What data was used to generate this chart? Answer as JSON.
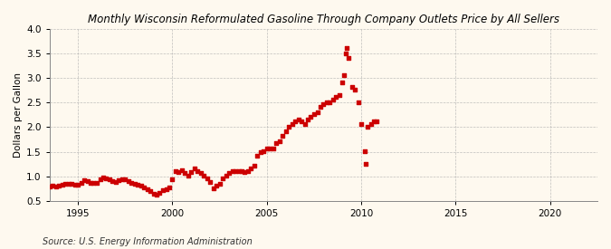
{
  "title": "Monthly Wisconsin Reformulated Gasoline Through Company Outlets Price by All Sellers",
  "ylabel": "Dollars per Gallon",
  "source": "Source: U.S. Energy Information Administration",
  "xlim": [
    1993.5,
    2022.5
  ],
  "ylim": [
    0.5,
    4.0
  ],
  "yticks": [
    0.5,
    1.0,
    1.5,
    2.0,
    2.5,
    3.0,
    3.5,
    4.0
  ],
  "xticks": [
    1995,
    2000,
    2005,
    2010,
    2015,
    2020
  ],
  "background_color": "#fef9ef",
  "marker_color": "#cc0000",
  "grid_color": "#b0b0b0",
  "data": [
    [
      1993.5,
      0.79
    ],
    [
      1993.67,
      0.8
    ],
    [
      1993.83,
      0.79
    ],
    [
      1994.0,
      0.8
    ],
    [
      1994.17,
      0.82
    ],
    [
      1994.33,
      0.84
    ],
    [
      1994.5,
      0.85
    ],
    [
      1994.67,
      0.84
    ],
    [
      1994.83,
      0.82
    ],
    [
      1995.0,
      0.83
    ],
    [
      1995.17,
      0.87
    ],
    [
      1995.33,
      0.91
    ],
    [
      1995.5,
      0.9
    ],
    [
      1995.67,
      0.87
    ],
    [
      1995.83,
      0.86
    ],
    [
      1996.0,
      0.87
    ],
    [
      1996.17,
      0.93
    ],
    [
      1996.33,
      0.97
    ],
    [
      1996.5,
      0.95
    ],
    [
      1996.67,
      0.93
    ],
    [
      1996.83,
      0.9
    ],
    [
      1997.0,
      0.88
    ],
    [
      1997.17,
      0.91
    ],
    [
      1997.33,
      0.94
    ],
    [
      1997.5,
      0.93
    ],
    [
      1997.67,
      0.9
    ],
    [
      1997.83,
      0.87
    ],
    [
      1998.0,
      0.84
    ],
    [
      1998.17,
      0.82
    ],
    [
      1998.33,
      0.8
    ],
    [
      1998.5,
      0.78
    ],
    [
      1998.67,
      0.74
    ],
    [
      1998.83,
      0.7
    ],
    [
      1999.0,
      0.65
    ],
    [
      1999.17,
      0.63
    ],
    [
      1999.33,
      0.66
    ],
    [
      1999.5,
      0.71
    ],
    [
      1999.67,
      0.73
    ],
    [
      1999.83,
      0.77
    ],
    [
      2000.0,
      0.93
    ],
    [
      2000.17,
      1.1
    ],
    [
      2000.33,
      1.08
    ],
    [
      2000.5,
      1.13
    ],
    [
      2000.67,
      1.06
    ],
    [
      2000.83,
      1.01
    ],
    [
      2001.0,
      1.09
    ],
    [
      2001.17,
      1.16
    ],
    [
      2001.33,
      1.11
    ],
    [
      2001.5,
      1.06
    ],
    [
      2001.67,
      1.01
    ],
    [
      2001.83,
      0.96
    ],
    [
      2002.0,
      0.88
    ],
    [
      2002.17,
      0.75
    ],
    [
      2002.33,
      0.8
    ],
    [
      2002.5,
      0.85
    ],
    [
      2002.67,
      0.96
    ],
    [
      2002.83,
      1.01
    ],
    [
      2003.0,
      1.06
    ],
    [
      2003.17,
      1.1
    ],
    [
      2003.33,
      1.11
    ],
    [
      2003.5,
      1.11
    ],
    [
      2003.67,
      1.1
    ],
    [
      2003.83,
      1.08
    ],
    [
      2004.0,
      1.11
    ],
    [
      2004.17,
      1.16
    ],
    [
      2004.33,
      1.22
    ],
    [
      2004.5,
      1.42
    ],
    [
      2004.67,
      1.5
    ],
    [
      2004.83,
      1.51
    ],
    [
      2005.0,
      1.56
    ],
    [
      2005.17,
      1.57
    ],
    [
      2005.33,
      1.57
    ],
    [
      2005.5,
      1.67
    ],
    [
      2005.67,
      1.72
    ],
    [
      2005.83,
      1.82
    ],
    [
      2006.0,
      1.91
    ],
    [
      2006.17,
      2.01
    ],
    [
      2006.33,
      2.06
    ],
    [
      2006.5,
      2.11
    ],
    [
      2006.67,
      2.16
    ],
    [
      2006.83,
      2.11
    ],
    [
      2007.0,
      2.06
    ],
    [
      2007.17,
      2.16
    ],
    [
      2007.33,
      2.21
    ],
    [
      2007.5,
      2.26
    ],
    [
      2007.67,
      2.31
    ],
    [
      2007.83,
      2.41
    ],
    [
      2008.0,
      2.46
    ],
    [
      2008.17,
      2.51
    ],
    [
      2008.33,
      2.51
    ],
    [
      2008.5,
      2.56
    ],
    [
      2008.67,
      2.61
    ],
    [
      2008.83,
      2.66
    ],
    [
      2009.0,
      2.91
    ],
    [
      2009.08,
      3.06
    ],
    [
      2009.17,
      3.51
    ],
    [
      2009.25,
      3.61
    ],
    [
      2009.33,
      3.41
    ],
    [
      2009.5,
      2.81
    ],
    [
      2009.67,
      2.76
    ],
    [
      2009.83,
      2.51
    ],
    [
      2010.0,
      2.06
    ],
    [
      2010.17,
      1.51
    ],
    [
      2010.25,
      1.26
    ],
    [
      2010.33,
      2.01
    ],
    [
      2010.5,
      2.06
    ],
    [
      2010.67,
      2.11
    ],
    [
      2010.83,
      2.11
    ]
  ]
}
